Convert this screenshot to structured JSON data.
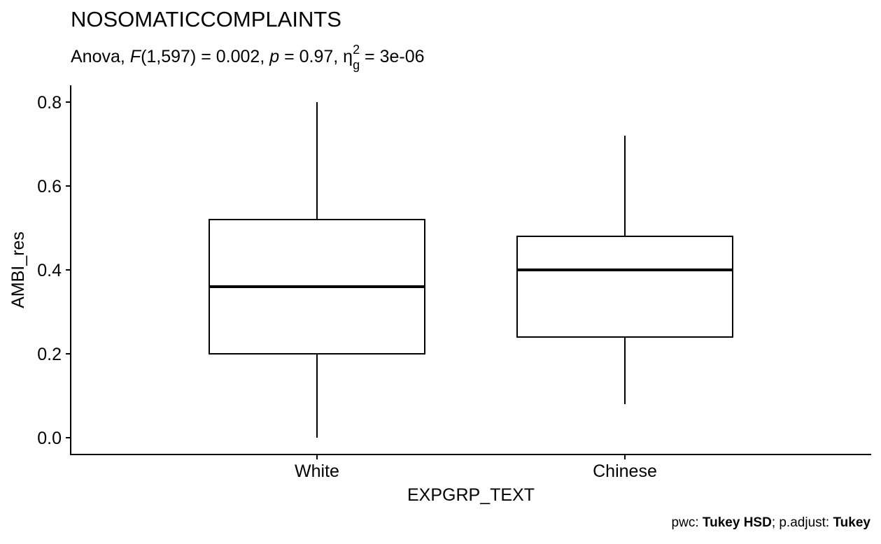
{
  "chart_data": {
    "type": "boxplot",
    "title": "NOSOMATICCOMPLAINTS",
    "subtitle": {
      "anova": "Anova, ",
      "f": "F",
      "f_args": "(1,597) = 0.002, ",
      "p": "p",
      "p_value": " = 0.97, ",
      "eta": "η",
      "eta_sub": "g",
      "eta_sup": "2",
      "eta_value": " = 3e-06"
    },
    "xlabel": "EXPGRP_TEXT",
    "ylabel": "AMBI_res",
    "ylim": [
      -0.04,
      0.84
    ],
    "yticks": [
      0.0,
      0.2,
      0.4,
      0.6,
      0.8
    ],
    "ytick_labels": [
      "0.0",
      "0.2",
      "0.4",
      "0.6",
      "0.8"
    ],
    "categories": [
      "White",
      "Chinese"
    ],
    "boxes": [
      {
        "category": "White",
        "min": 0.0,
        "q1": 0.2,
        "median": 0.36,
        "q3": 0.52,
        "max": 0.8
      },
      {
        "category": "Chinese",
        "min": 0.08,
        "q1": 0.24,
        "median": 0.4,
        "q3": 0.48,
        "max": 0.72
      }
    ],
    "caption": {
      "pwc_label": "pwc: ",
      "pwc_value": "Tukey HSD",
      "sep": "; p.adjust: ",
      "adjust_value": "Tukey"
    }
  }
}
